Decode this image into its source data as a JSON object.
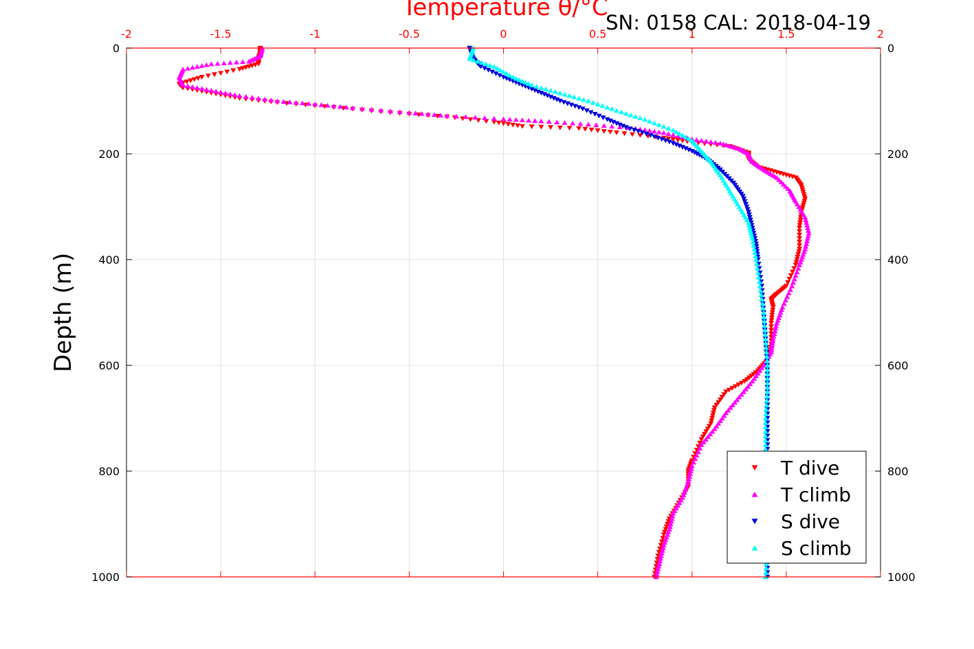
{
  "chart_data": {
    "type": "scatter",
    "title": "Temperature θ/°C",
    "subtitle": "SN: 0158  CAL: 2018-04-19",
    "xlabel": "Temperature θ/°C",
    "ylabel": "Depth (m)",
    "xlim": [
      -2,
      2
    ],
    "ylim": [
      0,
      1000
    ],
    "y_reversed": true,
    "x_ticks": [
      "-2",
      "-1.5",
      "-1",
      "-0.5",
      "0",
      "0.5",
      "1",
      "1.5",
      "2"
    ],
    "y_ticks": [
      "0",
      "200",
      "400",
      "600",
      "800",
      "1000"
    ],
    "grid": true,
    "legend_position": "bottom-right",
    "colors": {
      "t_axis": "#ff0000",
      "t_dive": "#ff0000",
      "t_climb": "#ff00ff",
      "s_dive": "#0000dd",
      "s_climb": "#00ffff",
      "grid": "#e0e0e0"
    },
    "series": [
      {
        "name": "T dive",
        "marker": "triangle-down",
        "points": [
          [
            -1.29,
            0
          ],
          [
            -1.29,
            10
          ],
          [
            -1.3,
            20
          ],
          [
            -1.3,
            30
          ],
          [
            -1.4,
            40
          ],
          [
            -1.6,
            55
          ],
          [
            -1.72,
            68
          ],
          [
            -1.7,
            75
          ],
          [
            -1.55,
            85
          ],
          [
            -1.4,
            95
          ],
          [
            -1.2,
            103
          ],
          [
            -0.9,
            112
          ],
          [
            -0.6,
            122
          ],
          [
            -0.3,
            130
          ],
          [
            -0.05,
            140
          ],
          [
            0.1,
            148
          ],
          [
            0.4,
            152
          ],
          [
            0.6,
            160
          ],
          [
            0.85,
            170
          ],
          [
            1.0,
            178
          ],
          [
            1.2,
            186
          ],
          [
            1.3,
            198
          ],
          [
            1.3,
            210
          ],
          [
            1.35,
            225
          ],
          [
            1.45,
            235
          ],
          [
            1.55,
            245
          ],
          [
            1.58,
            260
          ],
          [
            1.6,
            285
          ],
          [
            1.58,
            310
          ],
          [
            1.57,
            340
          ],
          [
            1.57,
            380
          ],
          [
            1.55,
            410
          ],
          [
            1.5,
            450
          ],
          [
            1.45,
            465
          ],
          [
            1.42,
            475
          ],
          [
            1.43,
            490
          ],
          [
            1.42,
            520
          ],
          [
            1.42,
            560
          ],
          [
            1.4,
            590
          ],
          [
            1.35,
            610
          ],
          [
            1.28,
            630
          ],
          [
            1.18,
            650
          ],
          [
            1.12,
            680
          ],
          [
            1.1,
            710
          ],
          [
            1.05,
            740
          ],
          [
            1.0,
            780
          ],
          [
            0.98,
            800
          ],
          [
            0.98,
            830
          ],
          [
            0.93,
            860
          ],
          [
            0.88,
            890
          ],
          [
            0.85,
            920
          ],
          [
            0.82,
            960
          ],
          [
            0.8,
            1000
          ]
        ]
      },
      {
        "name": "T climb",
        "marker": "triangle-up",
        "points": [
          [
            -1.28,
            0
          ],
          [
            -1.29,
            15
          ],
          [
            -1.35,
            25
          ],
          [
            -1.55,
            30
          ],
          [
            -1.7,
            40
          ],
          [
            -1.72,
            55
          ],
          [
            -1.7,
            70
          ],
          [
            -1.55,
            80
          ],
          [
            -1.4,
            90
          ],
          [
            -1.2,
            100
          ],
          [
            -1.0,
            106
          ],
          [
            -0.8,
            113
          ],
          [
            -0.5,
            122
          ],
          [
            -0.3,
            128
          ],
          [
            0.0,
            134
          ],
          [
            0.2,
            138
          ],
          [
            0.45,
            144
          ],
          [
            0.7,
            152
          ],
          [
            0.85,
            160
          ],
          [
            1.0,
            172
          ],
          [
            1.15,
            180
          ],
          [
            1.25,
            190
          ],
          [
            1.3,
            200
          ],
          [
            1.32,
            215
          ],
          [
            1.38,
            230
          ],
          [
            1.45,
            245
          ],
          [
            1.52,
            270
          ],
          [
            1.55,
            290
          ],
          [
            1.6,
            320
          ],
          [
            1.62,
            350
          ],
          [
            1.6,
            380
          ],
          [
            1.57,
            410
          ],
          [
            1.53,
            450
          ],
          [
            1.48,
            490
          ],
          [
            1.45,
            520
          ],
          [
            1.43,
            550
          ],
          [
            1.42,
            575
          ],
          [
            1.38,
            600
          ],
          [
            1.32,
            630
          ],
          [
            1.25,
            660
          ],
          [
            1.18,
            690
          ],
          [
            1.12,
            720
          ],
          [
            1.05,
            750
          ],
          [
            1.0,
            790
          ],
          [
            0.98,
            820
          ],
          [
            0.95,
            850
          ],
          [
            0.9,
            880
          ],
          [
            0.88,
            910
          ],
          [
            0.85,
            940
          ],
          [
            0.83,
            970
          ],
          [
            0.81,
            1000
          ]
        ]
      },
      {
        "name": "S dive",
        "marker": "triangle-down",
        "points": [
          [
            -0.18,
            0
          ],
          [
            -0.16,
            20
          ],
          [
            -0.12,
            35
          ],
          [
            0.0,
            55
          ],
          [
            0.1,
            70
          ],
          [
            0.2,
            85
          ],
          [
            0.3,
            100
          ],
          [
            0.42,
            115
          ],
          [
            0.55,
            135
          ],
          [
            0.65,
            150
          ],
          [
            0.78,
            165
          ],
          [
            0.9,
            180
          ],
          [
            1.0,
            195
          ],
          [
            1.08,
            210
          ],
          [
            1.15,
            230
          ],
          [
            1.22,
            255
          ],
          [
            1.27,
            280
          ],
          [
            1.3,
            310
          ],
          [
            1.32,
            340
          ],
          [
            1.34,
            370
          ],
          [
            1.35,
            400
          ],
          [
            1.37,
            450
          ],
          [
            1.38,
            500
          ],
          [
            1.39,
            550
          ],
          [
            1.4,
            600
          ],
          [
            1.4,
            650
          ],
          [
            1.4,
            700
          ],
          [
            1.4,
            750
          ],
          [
            1.4,
            800
          ],
          [
            1.4,
            850
          ],
          [
            1.4,
            900
          ],
          [
            1.4,
            950
          ],
          [
            1.4,
            1000
          ]
        ]
      },
      {
        "name": "S climb",
        "marker": "triangle-up",
        "points": [
          [
            -0.16,
            0
          ],
          [
            -0.18,
            20
          ],
          [
            -0.05,
            35
          ],
          [
            0.05,
            55
          ],
          [
            0.15,
            70
          ],
          [
            0.3,
            85
          ],
          [
            0.45,
            100
          ],
          [
            0.6,
            118
          ],
          [
            0.75,
            135
          ],
          [
            0.9,
            155
          ],
          [
            1.0,
            175
          ],
          [
            1.05,
            195
          ],
          [
            1.1,
            215
          ],
          [
            1.15,
            240
          ],
          [
            1.2,
            270
          ],
          [
            1.25,
            300
          ],
          [
            1.3,
            330
          ],
          [
            1.32,
            360
          ],
          [
            1.34,
            400
          ],
          [
            1.36,
            450
          ],
          [
            1.38,
            500
          ],
          [
            1.39,
            550
          ],
          [
            1.4,
            600
          ],
          [
            1.4,
            650
          ],
          [
            1.39,
            700
          ],
          [
            1.39,
            750
          ],
          [
            1.39,
            800
          ],
          [
            1.4,
            850
          ],
          [
            1.4,
            900
          ],
          [
            1.4,
            950
          ],
          [
            1.39,
            1000
          ]
        ]
      }
    ]
  }
}
